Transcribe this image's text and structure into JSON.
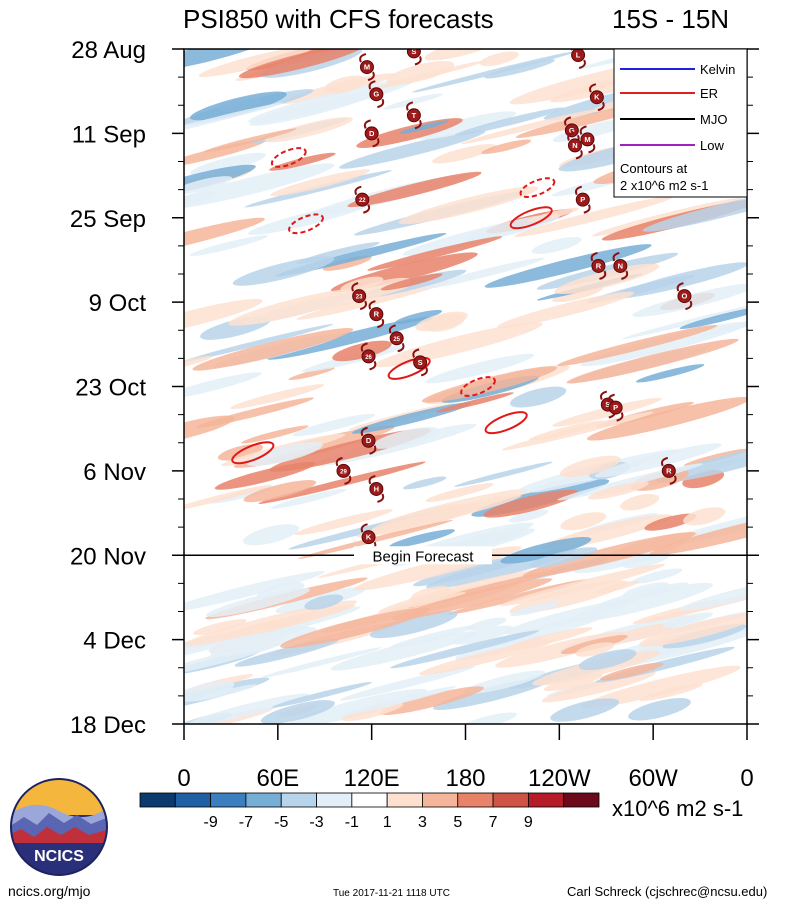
{
  "chart_data": {
    "type": "heatmap",
    "title": "PSI850 with CFS forecasts",
    "region": "15S - 15N",
    "x_tick_labels": [
      "0",
      "60E",
      "120E",
      "180",
      "120W",
      "60W",
      "0"
    ],
    "x_range_deg_east": [
      0,
      360
    ],
    "y_tick_labels": [
      "28 Aug",
      "11 Sep",
      "25 Sep",
      "9 Oct",
      "23 Oct",
      "6 Nov",
      "20 Nov",
      "4 Dec",
      "18 Dec"
    ],
    "y_range_days_from_start": [
      0,
      112
    ],
    "forecast_line": {
      "label": "Begin Forecast",
      "day": 84
    },
    "legend": {
      "items": [
        {
          "name": "Kelvin",
          "color": "#2020e0"
        },
        {
          "name": "ER",
          "color": "#e02020"
        },
        {
          "name": "MJO",
          "color": "#000000"
        },
        {
          "name": "Low",
          "color": "#a020c0"
        }
      ],
      "contours_line1": "Contours at",
      "contours_line2": "2 x10^6 m2 s-1"
    },
    "colorbar": {
      "levels": [
        "-9",
        "-7",
        "-5",
        "-3",
        "-1",
        "1",
        "3",
        "5",
        "7",
        "9"
      ],
      "colors": [
        "#0a3a6e",
        "#1f5fa3",
        "#3b7fc0",
        "#77aed6",
        "#b8d4ea",
        "#e3eef7",
        "#ffffff",
        "#fde0d0",
        "#f5b59a",
        "#e8836a",
        "#d05446",
        "#b51c28",
        "#6b0a1a"
      ],
      "units": "x10^6 m2 s-1"
    },
    "storms": [
      {
        "label": "S",
        "lon": 147,
        "day": 0.4
      },
      {
        "label": "L",
        "lon": 252,
        "day": 1
      },
      {
        "label": "M",
        "lon": 117,
        "day": 3
      },
      {
        "label": "G",
        "lon": 123,
        "day": 7.5
      },
      {
        "label": "K",
        "lon": 264,
        "day": 8
      },
      {
        "label": "T",
        "lon": 147,
        "day": 11
      },
      {
        "label": "D",
        "lon": 120,
        "day": 14
      },
      {
        "label": "G",
        "lon": 248,
        "day": 13.5
      },
      {
        "label": "M",
        "lon": 258,
        "day": 15
      },
      {
        "label": "N",
        "lon": 250,
        "day": 16
      },
      {
        "label": "22",
        "lon": 114,
        "day": 25
      },
      {
        "label": "P",
        "lon": 255,
        "day": 25
      },
      {
        "label": "R",
        "lon": 265,
        "day": 36
      },
      {
        "label": "N",
        "lon": 279,
        "day": 36
      },
      {
        "label": "23",
        "lon": 112,
        "day": 41
      },
      {
        "label": "O",
        "lon": 320,
        "day": 41
      },
      {
        "label": "R",
        "lon": 123,
        "day": 44
      },
      {
        "label": "25",
        "lon": 136,
        "day": 48
      },
      {
        "label": "26",
        "lon": 118,
        "day": 51
      },
      {
        "label": "S",
        "lon": 151,
        "day": 52
      },
      {
        "label": "S",
        "lon": 271,
        "day": 59
      },
      {
        "label": "P",
        "lon": 276,
        "day": 59.5
      },
      {
        "label": "D",
        "lon": 118,
        "day": 65
      },
      {
        "label": "29",
        "lon": 102,
        "day": 70
      },
      {
        "label": "R",
        "lon": 310,
        "day": 70
      },
      {
        "label": "H",
        "lon": 123,
        "day": 73
      },
      {
        "label": "K",
        "lon": 118,
        "day": 81
      }
    ],
    "er_contours": [
      {
        "lon": 67,
        "day": 18,
        "dashed": true
      },
      {
        "lon": 78,
        "day": 29,
        "dashed": true
      },
      {
        "lon": 222,
        "day": 28,
        "dashed": false
      },
      {
        "lon": 226,
        "day": 23,
        "dashed": true
      },
      {
        "lon": 144,
        "day": 53,
        "dashed": false
      },
      {
        "lon": 188,
        "day": 56,
        "dashed": true
      },
      {
        "lon": 206,
        "day": 62,
        "dashed": false
      },
      {
        "lon": 44,
        "day": 67,
        "dashed": false
      }
    ]
  },
  "logo_text": "NCICS",
  "footer": {
    "left": "ncics.org/mjo",
    "middle": "Tue 2017-11-21 1118 UTC",
    "right": "Carl Schreck (cjschrec@ncsu.edu)"
  }
}
